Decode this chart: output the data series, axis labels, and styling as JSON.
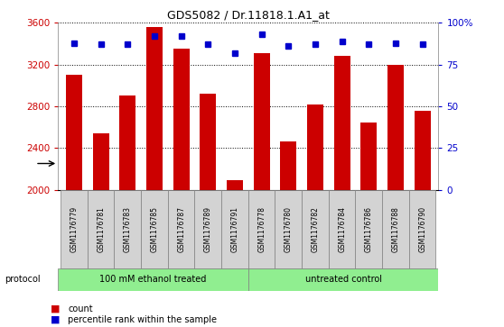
{
  "title": "GDS5082 / Dr.11818.1.A1_at",
  "samples": [
    "GSM1176779",
    "GSM1176781",
    "GSM1176783",
    "GSM1176785",
    "GSM1176787",
    "GSM1176789",
    "GSM1176791",
    "GSM1176778",
    "GSM1176780",
    "GSM1176782",
    "GSM1176784",
    "GSM1176786",
    "GSM1176788",
    "GSM1176790"
  ],
  "counts": [
    3100,
    2540,
    2900,
    3560,
    3350,
    2920,
    2090,
    3310,
    2460,
    2820,
    3280,
    2640,
    3200,
    2760
  ],
  "percentiles": [
    88,
    87,
    87,
    92,
    92,
    87,
    82,
    93,
    86,
    87,
    89,
    87,
    88,
    87
  ],
  "group_labels": [
    "100 mM ethanol treated",
    "untreated control"
  ],
  "group_sizes": [
    7,
    7
  ],
  "ylim_left": [
    2000,
    3600
  ],
  "ylim_right": [
    0,
    100
  ],
  "yticks_left": [
    2000,
    2400,
    2800,
    3200,
    3600
  ],
  "yticks_right": [
    0,
    25,
    50,
    75,
    100
  ],
  "bar_color": "#cc0000",
  "dot_color": "#0000cc",
  "group_bg_color": "#90ee90",
  "sample_bg_color": "#d3d3d3",
  "legend_count_label": "count",
  "legend_percentile_label": "percentile rank within the sample",
  "protocol_label": "protocol"
}
